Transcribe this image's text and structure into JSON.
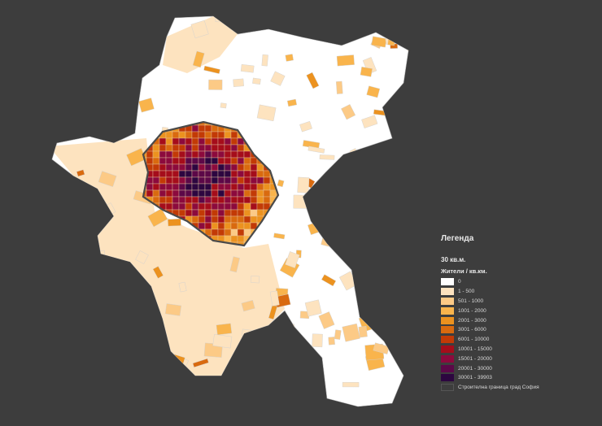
{
  "legend": {
    "title": "Легенда",
    "subtitle": "30 кв.м.",
    "unit": "Жители / кв.км.",
    "classes": [
      {
        "label": "0",
        "color": "#ffffff"
      },
      {
        "label": "1 - 500",
        "color": "#fde3bf"
      },
      {
        "label": "501 - 1000",
        "color": "#fcca86"
      },
      {
        "label": "1001 - 2000",
        "color": "#f9b44c"
      },
      {
        "label": "2001 - 3000",
        "color": "#ec921f"
      },
      {
        "label": "3001 - 6000",
        "color": "#d96a0f"
      },
      {
        "label": "6001 - 10000",
        "color": "#c23a06"
      },
      {
        "label": "10001 - 15000",
        "color": "#a50d1b"
      },
      {
        "label": "15001 - 20000",
        "color": "#8c0a3d"
      },
      {
        "label": "20001 - 30000",
        "color": "#5c0848"
      },
      {
        "label": "30001 - 39903",
        "color": "#2d0640"
      }
    ],
    "boundary": {
      "label": "Строителна граница град София",
      "color": "#3d3d3d"
    }
  },
  "colors": {
    "background": "#3d3d3d",
    "boundary_line": "#4a4a4a",
    "district_line": "#c8c8c8"
  }
}
